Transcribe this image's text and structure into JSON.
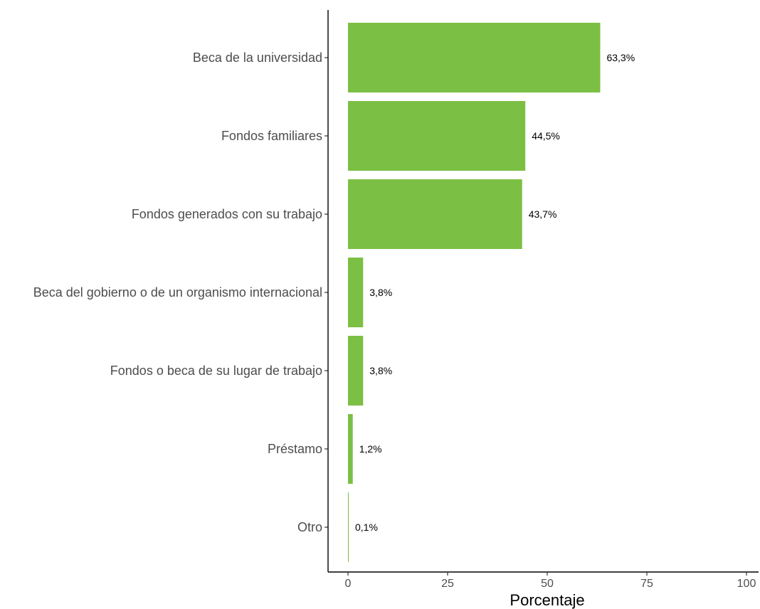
{
  "chart_data": {
    "type": "bar",
    "orientation": "horizontal",
    "categories": [
      "Beca de la universidad",
      "Fondos familiares",
      "Fondos generados con su trabajo",
      "Beca del gobierno o de un organismo internacional",
      "Fondos o beca de su lugar de trabajo",
      "Préstamo",
      "Otro"
    ],
    "values": [
      63.3,
      44.5,
      43.7,
      3.8,
      3.8,
      1.2,
      0.1
    ],
    "data_labels": [
      "63,3%",
      "44,5%",
      "43,7%",
      "3,8%",
      "3,8%",
      "1,2%",
      "0,1%"
    ],
    "title": "",
    "xlabel": "Porcentaje",
    "ylabel": "",
    "xlim": [
      0,
      100
    ],
    "x_ticks": [
      0,
      25,
      50,
      75,
      100
    ],
    "x_tick_labels": [
      "0",
      "25",
      "50",
      "75",
      "100"
    ],
    "bar_color": "#7bbf44",
    "grid": false,
    "legend": "none"
  }
}
